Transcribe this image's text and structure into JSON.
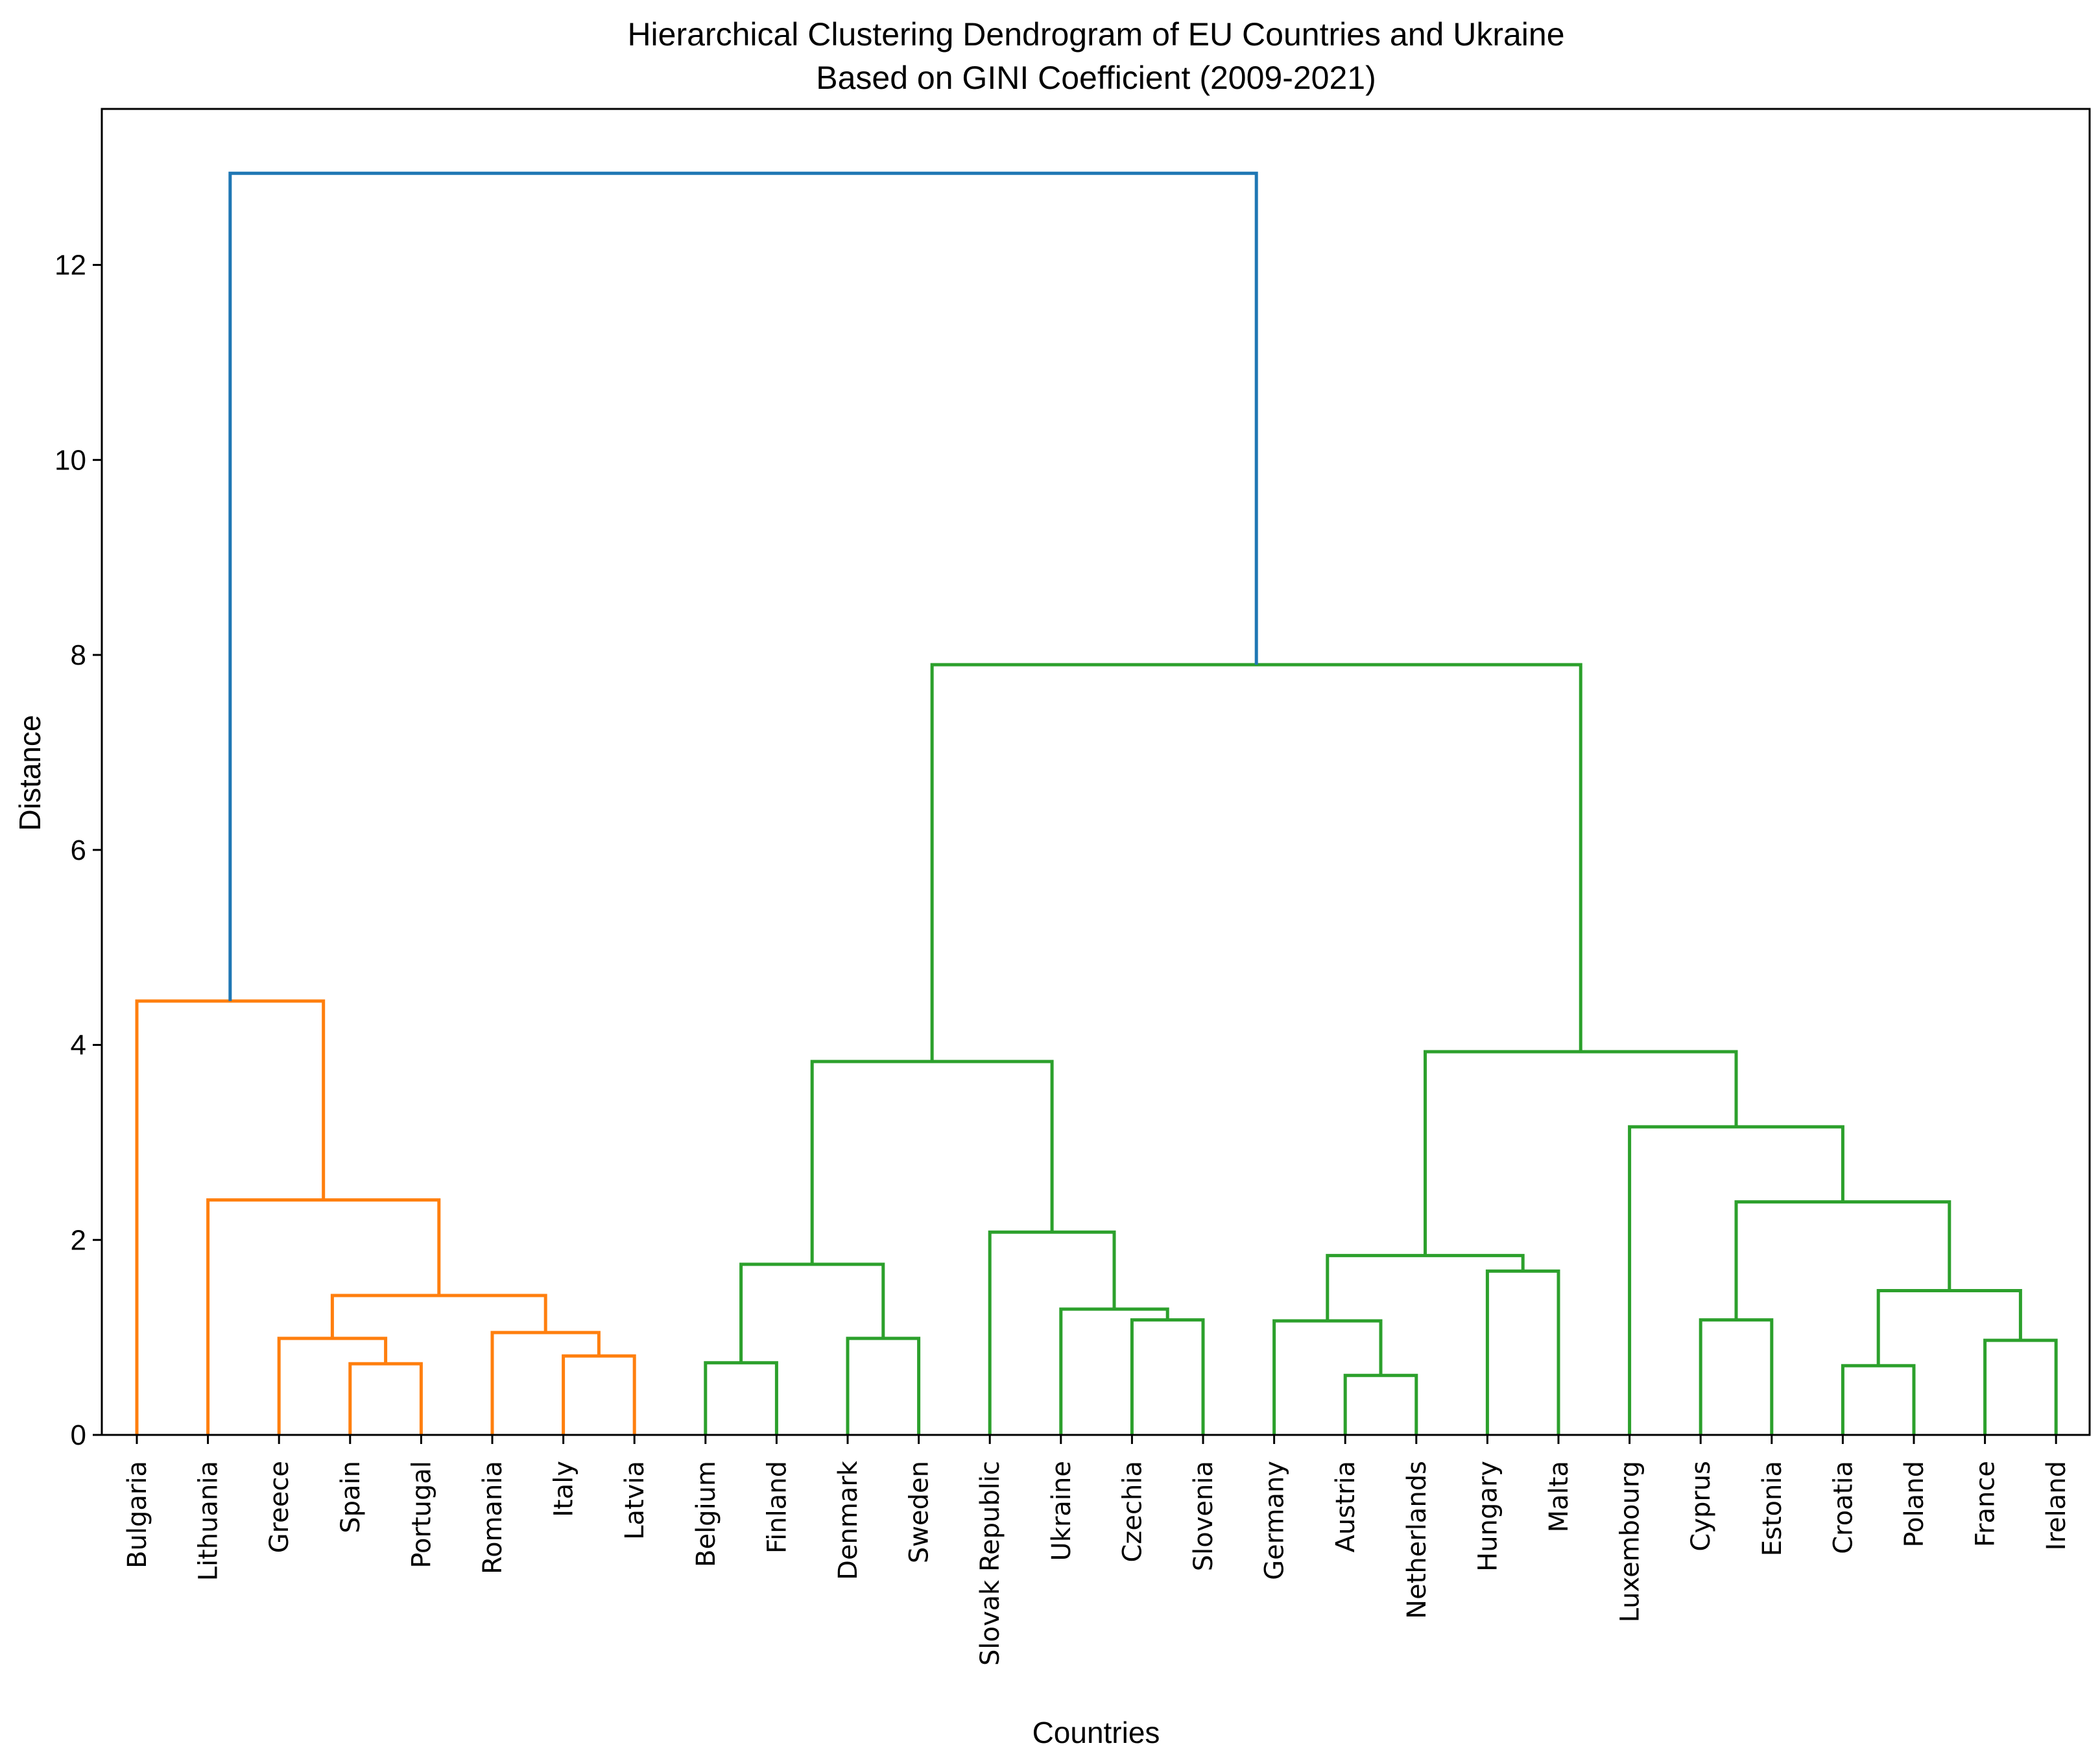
{
  "chart_data": {
    "type": "dendrogram",
    "title": "Hierarchical Clustering Dendrogram of EU Countries and Ukraine",
    "subtitle": "Based on GINI Coefficient (2009-2021)",
    "xlabel": "Countries",
    "ylabel": "Distance",
    "ylim": [
      0,
      13.6
    ],
    "yticks": [
      0,
      2,
      4,
      6,
      8,
      10,
      12
    ],
    "grid": false,
    "colors": {
      "cluster_a": "#ff7f0e",
      "cluster_b": "#2ca02c",
      "root": "#1f77b4"
    },
    "leaves": [
      "Bulgaria",
      "Lithuania",
      "Greece",
      "Spain",
      "Portugal",
      "Romania",
      "Italy",
      "Latvia",
      "Belgium",
      "Finland",
      "Denmark",
      "Sweden",
      "Slovak Republic",
      "Ukraine",
      "Czechia",
      "Slovenia",
      "Germany",
      "Austria",
      "Netherlands",
      "Hungary",
      "Malta",
      "Luxembourg",
      "Cyprus",
      "Estonia",
      "Croatia",
      "Poland",
      "France",
      "Ireland"
    ],
    "merges": [
      {
        "id": "m1",
        "left": "Spain",
        "right": "Portugal",
        "height": 0.73,
        "color": "cluster_a"
      },
      {
        "id": "m2",
        "left": "Greece",
        "right": "m1",
        "height": 0.99,
        "color": "cluster_a"
      },
      {
        "id": "m3",
        "left": "Italy",
        "right": "Latvia",
        "height": 0.81,
        "color": "cluster_a"
      },
      {
        "id": "m4",
        "left": "Romania",
        "right": "m3",
        "height": 1.05,
        "color": "cluster_a"
      },
      {
        "id": "m5",
        "left": "m2",
        "right": "m4",
        "height": 1.43,
        "color": "cluster_a"
      },
      {
        "id": "m6",
        "left": "Lithuania",
        "right": "m5",
        "height": 2.41,
        "color": "cluster_a"
      },
      {
        "id": "m7",
        "left": "Bulgaria",
        "right": "m6",
        "height": 4.45,
        "color": "cluster_a"
      },
      {
        "id": "m8",
        "left": "Belgium",
        "right": "Finland",
        "height": 0.74,
        "color": "cluster_b"
      },
      {
        "id": "m9",
        "left": "Denmark",
        "right": "Sweden",
        "height": 0.99,
        "color": "cluster_b"
      },
      {
        "id": "m10",
        "left": "m8",
        "right": "m9",
        "height": 1.75,
        "color": "cluster_b"
      },
      {
        "id": "m11",
        "left": "Czechia",
        "right": "Slovenia",
        "height": 1.18,
        "color": "cluster_b"
      },
      {
        "id": "m12",
        "left": "Ukraine",
        "right": "m11",
        "height": 1.29,
        "color": "cluster_b"
      },
      {
        "id": "m13",
        "left": "Slovak Republic",
        "right": "m12",
        "height": 2.08,
        "color": "cluster_b"
      },
      {
        "id": "m14",
        "left": "m10",
        "right": "m13",
        "height": 3.83,
        "color": "cluster_b"
      },
      {
        "id": "m15",
        "left": "Austria",
        "right": "Netherlands",
        "height": 0.61,
        "color": "cluster_b"
      },
      {
        "id": "m16",
        "left": "Germany",
        "right": "m15",
        "height": 1.17,
        "color": "cluster_b"
      },
      {
        "id": "m17",
        "left": "Hungary",
        "right": "Malta",
        "height": 1.68,
        "color": "cluster_b"
      },
      {
        "id": "m18",
        "left": "m16",
        "right": "m17",
        "height": 1.84,
        "color": "cluster_b"
      },
      {
        "id": "m19",
        "left": "Cyprus",
        "right": "Estonia",
        "height": 1.18,
        "color": "cluster_b"
      },
      {
        "id": "m20",
        "left": "Croatia",
        "right": "Poland",
        "height": 0.71,
        "color": "cluster_b"
      },
      {
        "id": "m21",
        "left": "France",
        "right": "Ireland",
        "height": 0.97,
        "color": "cluster_b"
      },
      {
        "id": "m22",
        "left": "m20",
        "right": "m21",
        "height": 1.48,
        "color": "cluster_b"
      },
      {
        "id": "m23",
        "left": "m19",
        "right": "m22",
        "height": 2.39,
        "color": "cluster_b"
      },
      {
        "id": "m24",
        "left": "Luxembourg",
        "right": "m23",
        "height": 3.16,
        "color": "cluster_b"
      },
      {
        "id": "m25",
        "left": "m18",
        "right": "m24",
        "height": 3.93,
        "color": "cluster_b"
      },
      {
        "id": "m26",
        "left": "m14",
        "right": "m25",
        "height": 7.9,
        "color": "cluster_b"
      },
      {
        "id": "m27",
        "left": "m7",
        "right": "m26",
        "height": 12.94,
        "color": "root"
      }
    ]
  }
}
